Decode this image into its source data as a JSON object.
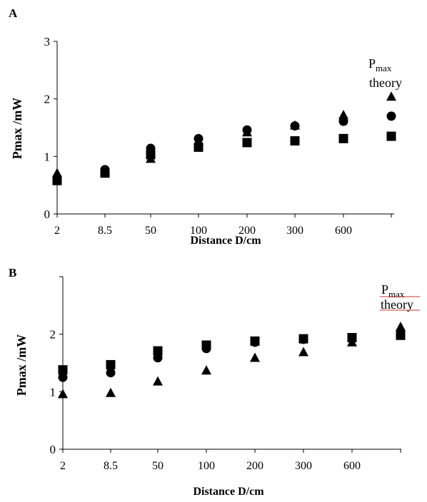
{
  "chart_data": [
    {
      "panel_label": "A",
      "type": "scatter",
      "categories": [
        "2",
        "8.5",
        "50",
        "100",
        "200",
        "300",
        "600",
        ""
      ],
      "y_ticks": [
        "0",
        "1",
        "2",
        "3"
      ],
      "ylim": [
        0,
        3
      ],
      "xlabel": "Distance D/cm",
      "ylabel": "Pmax /mW",
      "theory_label": {
        "main": "P",
        "sub": "max",
        "line2": "theory"
      },
      "series": [
        {
          "marker": "square",
          "values": [
            0.58,
            0.71,
            1.03,
            1.16,
            1.24,
            1.27,
            1.31,
            1.35
          ]
        },
        {
          "marker": "circle",
          "values": [
            0.63,
            0.77,
            1.14,
            1.31,
            1.46,
            1.53,
            1.61,
            1.7
          ]
        },
        {
          "marker": "triangle",
          "values": [
            0.7,
            0.75,
            0.95,
            1.26,
            1.41,
            1.53,
            1.71,
            2.03
          ]
        }
      ]
    },
    {
      "panel_label": "B",
      "type": "scatter",
      "categories": [
        "2",
        "8.5",
        "50",
        "100",
        "200",
        "300",
        "600",
        ""
      ],
      "y_ticks": [
        "0",
        "1",
        "2"
      ],
      "ylim": [
        0,
        3
      ],
      "xlabel": "Distance D/cm",
      "ylabel": "Pmax /mW",
      "theory_label": {
        "main": "P",
        "sub": "max",
        "line2": "theory"
      },
      "series": [
        {
          "marker": "square",
          "values": [
            1.38,
            1.47,
            1.71,
            1.81,
            1.88,
            1.92,
            1.94,
            1.98
          ]
        },
        {
          "marker": "circle",
          "values": [
            1.25,
            1.33,
            1.59,
            1.75,
            1.86,
            1.91,
            1.93,
            2.03
          ]
        },
        {
          "marker": "triangle",
          "values": [
            0.95,
            0.97,
            1.17,
            1.36,
            1.58,
            1.68,
            1.85,
            2.12
          ]
        }
      ]
    }
  ]
}
